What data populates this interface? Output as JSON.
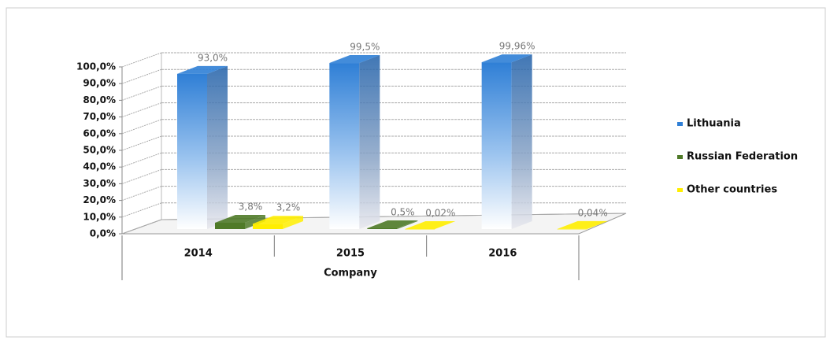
{
  "chart_data": {
    "type": "bar3d",
    "x_label": "Company",
    "categories": [
      "2014",
      "2015",
      "2016"
    ],
    "series": [
      {
        "name": "Lithuania",
        "color": "#2f7fd6",
        "values": [
          93.0,
          99.5,
          99.96
        ],
        "value_labels": [
          "93,0%",
          "99,5%",
          "99,96%"
        ]
      },
      {
        "name": "Russian Federation",
        "color": "#4f7a28",
        "values": [
          3.8,
          0.5,
          null
        ],
        "value_labels": [
          "3,8%",
          "0,5%",
          null
        ]
      },
      {
        "name": "Other countries",
        "color": "#ffee00",
        "values": [
          3.2,
          0.02,
          0.04
        ],
        "value_labels": [
          "3,2%",
          "0,02%",
          "0,04%"
        ]
      }
    ],
    "ylim": [
      0,
      100
    ],
    "yticks": [
      {
        "value": 0,
        "label": "0,0%"
      },
      {
        "value": 10,
        "label": "10,0%"
      },
      {
        "value": 20,
        "label": "20,0%"
      },
      {
        "value": 30,
        "label": "30,0%"
      },
      {
        "value": 40,
        "label": "40,0%"
      },
      {
        "value": 50,
        "label": "50,0%"
      },
      {
        "value": 60,
        "label": "60,0%"
      },
      {
        "value": 70,
        "label": "70,0%"
      },
      {
        "value": 80,
        "label": "80,0%"
      },
      {
        "value": 90,
        "label": "90,0%"
      },
      {
        "value": 100,
        "label": "100,0%"
      }
    ],
    "grid": true,
    "legend": "right"
  }
}
